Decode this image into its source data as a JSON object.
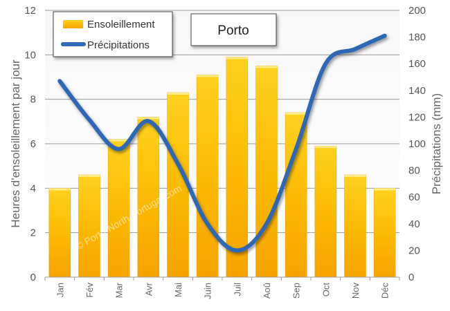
{
  "chart_data": {
    "type": "bar+line",
    "title": "Porto",
    "categories": [
      "Jan",
      "Fév",
      "Mar",
      "Avr",
      "Mai",
      "Juin",
      "Juil",
      "Aoû",
      "Sep",
      "Oct",
      "Nov",
      "Déc"
    ],
    "series": [
      {
        "name": "Ensoleillement",
        "type": "bar",
        "axis": "left",
        "color": "#f7b500",
        "values": [
          4.0,
          4.6,
          6.2,
          7.2,
          8.3,
          9.1,
          9.9,
          9.5,
          7.4,
          5.9,
          4.6,
          4.0
        ]
      },
      {
        "name": "Précipitations",
        "type": "line",
        "axis": "right",
        "color": "#2f68b5",
        "values": [
          147,
          118,
          96,
          117,
          85,
          40,
          20,
          40,
          96,
          160,
          171,
          181
        ]
      }
    ],
    "ylabel": "Heures d'ensoleillement par jour",
    "y2label": "Précipitations (mm)",
    "ylim": [
      0,
      12
    ],
    "y2lim": [
      0,
      200
    ],
    "yticks": [
      0,
      2,
      4,
      6,
      8,
      10,
      12
    ],
    "y2ticks": [
      0,
      20,
      40,
      60,
      80,
      100,
      120,
      140,
      160,
      180,
      200
    ],
    "grid": true,
    "legend_position": "top-left",
    "watermark": "© Porto-North-Portugal.com"
  }
}
